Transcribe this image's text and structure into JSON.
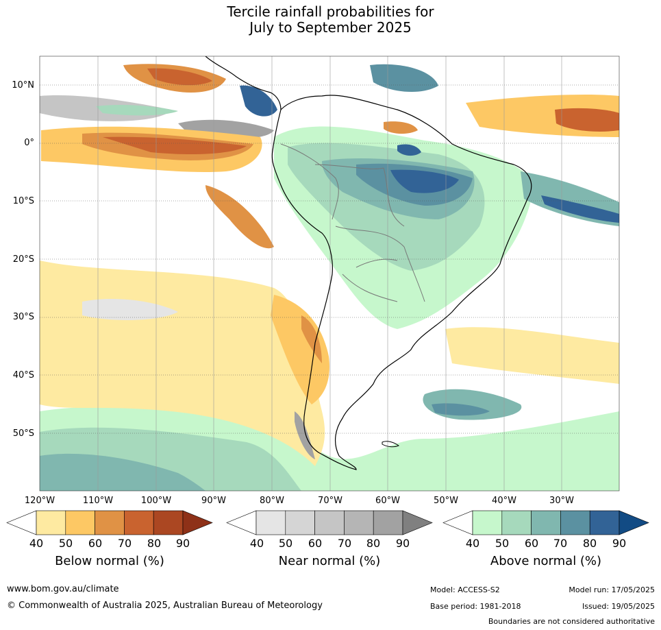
{
  "title": {
    "line1": "Tercile rainfall probabilities for",
    "line2": "July to September 2025"
  },
  "axes": {
    "lat_labels": [
      "10°N",
      "0°",
      "10°S",
      "20°S",
      "30°S",
      "40°S",
      "50°S"
    ],
    "lon_labels": [
      "120°W",
      "110°W",
      "100°W",
      "90°W",
      "80°W",
      "70°W",
      "60°W",
      "50°W",
      "40°W",
      "30°W"
    ]
  },
  "colorbars": [
    {
      "title": "Below normal (%)",
      "ticks": [
        "40",
        "50",
        "60",
        "70",
        "80",
        "90"
      ],
      "colors": [
        "#ffffff",
        "#feeaa1",
        "#fdc864",
        "#e09245",
        "#c9632f",
        "#ab4722",
        "#8e3118"
      ]
    },
    {
      "title": "Near normal (%)",
      "ticks": [
        "40",
        "50",
        "60",
        "70",
        "80",
        "90"
      ],
      "colors": [
        "#ffffff",
        "#e5e5e5",
        "#d5d5d5",
        "#c5c5c5",
        "#b5b5b5",
        "#a2a2a2",
        "#808080"
      ]
    },
    {
      "title": "Above normal (%)",
      "ticks": [
        "40",
        "50",
        "60",
        "70",
        "80",
        "90"
      ],
      "colors": [
        "#ffffff",
        "#c6f7cc",
        "#a6d9bc",
        "#80b7af",
        "#5b91a1",
        "#326396",
        "#124b84"
      ]
    }
  ],
  "footer": {
    "website": "www.bom.gov.au/climate",
    "copyright": "© Commonwealth of Australia 2025, Australian Bureau of Meteorology",
    "model": "Model: ACCESS-S2",
    "base_period": "Base period: 1981-2018",
    "model_run": "Model run: 17/05/2025",
    "issued": "Issued: 19/05/2025",
    "disclaimer": "Boundaries are not considered authoritative"
  }
}
